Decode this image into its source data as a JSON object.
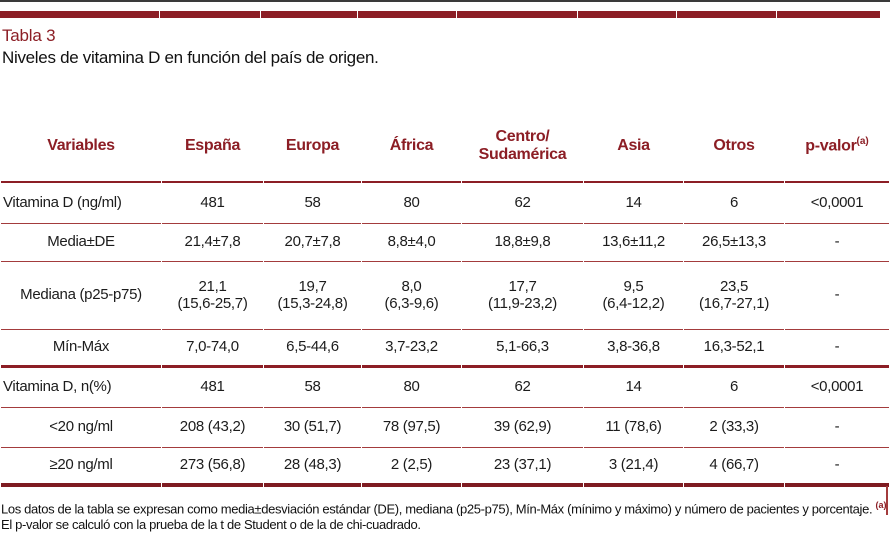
{
  "title": "Tabla 3",
  "subtitle": "Niveles de vitamina D en función del país de origen.",
  "colors": {
    "accent_maroon": "#8C1E25",
    "thin_rule": "#A33B3C"
  },
  "table": {
    "columns": [
      "Variables",
      "España",
      "Europa",
      "África",
      "Centro/\nSudamérica",
      "Asia",
      "Otros",
      "p-valor"
    ],
    "header_sup": {
      "index": 7,
      "text": "(a)"
    },
    "rows": [
      {
        "label": "Vitamina D (ng/ml)",
        "align": "left",
        "values": [
          "481",
          "58",
          "80",
          "62",
          "14",
          "6",
          "<0,0001"
        ]
      },
      {
        "label": "Media±DE",
        "align": "center",
        "values": [
          "21,4±7,8",
          "20,7±7,8",
          "8,8±4,0",
          "18,8±9,8",
          "13,6±11,2",
          "26,5±13,3",
          "-"
        ]
      },
      {
        "label": "Mediana (p25-p75)",
        "align": "center",
        "values": [
          "21,1\n(15,6-25,7)",
          "19,7\n(15,3-24,8)",
          "8,0\n(6,3-9,6)",
          "17,7\n(11,9-23,2)",
          "9,5\n(6,4-12,2)",
          "23,5\n(16,7-27,1)",
          "-"
        ]
      },
      {
        "label": "Mín-Máx",
        "align": "center",
        "values": [
          "7,0-74,0",
          "6,5-44,6",
          "3,7-23,2",
          "5,1-66,3",
          "3,8-36,8",
          "16,3-52,1",
          "-"
        ]
      },
      {
        "label": "Vitamina D, n(%)",
        "align": "left",
        "values": [
          "481",
          "58",
          "80",
          "62",
          "14",
          "6",
          "<0,0001"
        ]
      },
      {
        "label": "<20 ng/ml",
        "align": "center",
        "values": [
          "208 (43,2)",
          "30 (51,7)",
          "78 (97,5)",
          "39 (62,9)",
          "11 (78,6)",
          "2 (33,3)",
          "-"
        ]
      },
      {
        "label": "≥20 ng/ml",
        "align": "center",
        "values": [
          "273 (56,8)",
          "28 (48,3)",
          "2 (2,5)",
          "23 (37,1)",
          "3 (21,4)",
          "4 (66,7)",
          "-"
        ]
      }
    ]
  },
  "footnote": {
    "part1": "Los datos de la tabla se expresan como media±desviación estándar (DE), mediana (p25-p75), Mín-Máx (mínimo y máximo) y número de pacientes y porcentaje. ",
    "sup": "(a)",
    "part2": " El p-valor se calculó con la prueba de la t de Student o de la de chi-cuadrado."
  }
}
